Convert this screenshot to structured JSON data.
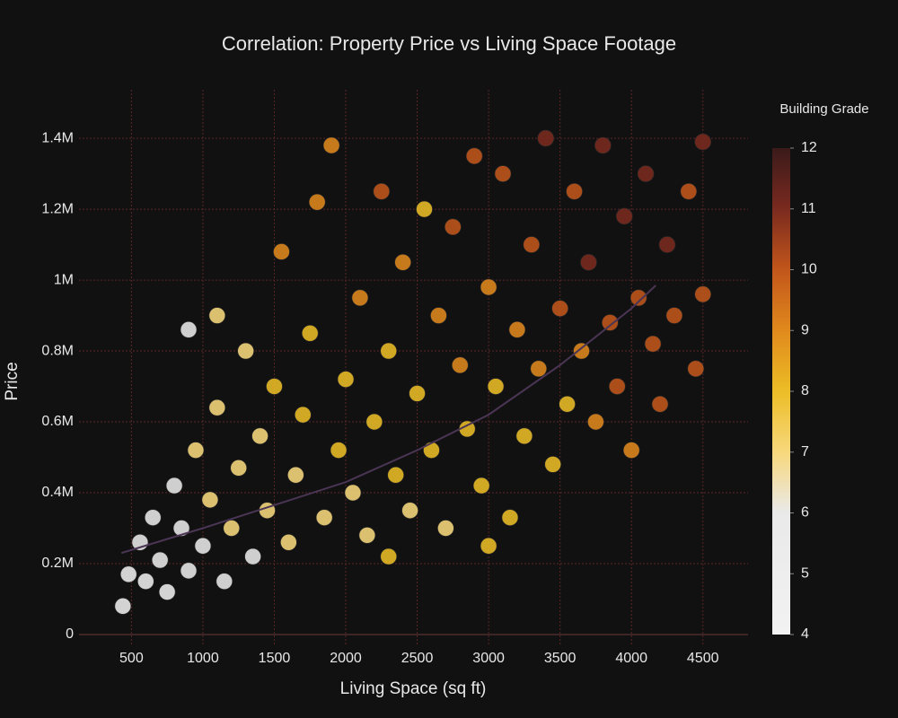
{
  "chart_data": {
    "type": "scatter",
    "title": "Correlation: Property Price vs Living Space Footage",
    "x_label": "Living Space (sq ft)",
    "y_label": "Price",
    "xlim": [
      133,
      4816
    ],
    "ylim": [
      -33000,
      1537000
    ],
    "xticks": [
      500,
      1000,
      1500,
      2000,
      2500,
      3000,
      3500,
      4000,
      4500
    ],
    "yticks": [
      0,
      {
        "value": 200000,
        "label": "0.2M"
      },
      {
        "value": 400000,
        "label": "0.4M"
      },
      {
        "value": 600000,
        "label": "0.6M"
      },
      {
        "value": 800000,
        "label": "0.8M"
      },
      {
        "value": 1000000,
        "label": "1M"
      },
      {
        "value": 1200000,
        "label": "1.2M"
      },
      {
        "value": 1400000,
        "label": "1.4M"
      }
    ],
    "grid": true,
    "series": [
      {
        "type": "scatter",
        "x": [
          440,
          480,
          560,
          600,
          650,
          700,
          750,
          800,
          850,
          900,
          950,
          1000,
          1050,
          1100,
          1150,
          1200,
          1250,
          1300,
          1350,
          1400,
          1450,
          1500,
          1550,
          1600,
          1650,
          1700,
          1750,
          1800,
          1850,
          1900,
          1950,
          2000,
          2050,
          2100,
          2150,
          2200,
          2250,
          2300,
          2350,
          2400,
          2450,
          2500,
          2550,
          2600,
          2650,
          2700,
          2750,
          2800,
          2850,
          2900,
          2950,
          3000,
          3050,
          3100,
          3150,
          3200,
          3250,
          3300,
          3350,
          3400,
          3450,
          3500,
          3550,
          3600,
          3650,
          3700,
          3750,
          3800,
          3850,
          3900,
          3950,
          4000,
          4050,
          4100,
          4150,
          4200,
          4250,
          4300,
          4400,
          4450,
          4500,
          4500,
          1100,
          900,
          2300,
          3000
        ],
        "values": [
          80000,
          170000,
          260000,
          150000,
          330000,
          210000,
          120000,
          420000,
          300000,
          180000,
          520000,
          250000,
          380000,
          640000,
          150000,
          300000,
          470000,
          800000,
          220000,
          560000,
          350000,
          700000,
          1080000,
          260000,
          450000,
          620000,
          850000,
          1220000,
          330000,
          1380000,
          520000,
          720000,
          400000,
          950000,
          280000,
          600000,
          1250000,
          800000,
          450000,
          1050000,
          350000,
          680000,
          1200000,
          520000,
          900000,
          300000,
          1150000,
          760000,
          580000,
          1350000,
          420000,
          980000,
          700000,
          1300000,
          330000,
          860000,
          560000,
          1100000,
          750000,
          1400000,
          480000,
          920000,
          650000,
          1250000,
          800000,
          1050000,
          600000,
          1380000,
          880000,
          700000,
          1180000,
          520000,
          950000,
          1300000,
          820000,
          650000,
          1100000,
          900000,
          1250000,
          750000,
          1390000,
          960000,
          900000,
          860000,
          220000,
          250000
        ],
        "grades": [
          5,
          5,
          6,
          5,
          6,
          6,
          5,
          6,
          6,
          6,
          7,
          6,
          7,
          7,
          6,
          7,
          7,
          7,
          6,
          7,
          7,
          8,
          9,
          7,
          7,
          8,
          8,
          9,
          7,
          9,
          8,
          8,
          7,
          9,
          7,
          8,
          10,
          8,
          8,
          9,
          7,
          8,
          8,
          8,
          9,
          7,
          10,
          9,
          8,
          10,
          8,
          9,
          8,
          10,
          8,
          9,
          8,
          10,
          9,
          11,
          8,
          10,
          8,
          10,
          9,
          11,
          9,
          11,
          10,
          10,
          11,
          9,
          10,
          11,
          10,
          10,
          11,
          10,
          10,
          10,
          11,
          10,
          7,
          6,
          8,
          8
        ]
      },
      {
        "type": "line",
        "color": "#4b3555",
        "x": [
          430,
          1000,
          1500,
          2000,
          2500,
          3000,
          3500,
          4000,
          4170
        ],
        "values": [
          230000,
          300000,
          365000,
          430000,
          520000,
          620000,
          760000,
          920000,
          985000
        ]
      }
    ],
    "colorbar": {
      "title": "Building Grade",
      "lim": [
        4,
        12
      ],
      "ticks": [
        4,
        5,
        6,
        7,
        8,
        9,
        10,
        11,
        12
      ],
      "colorscale": [
        [
          4,
          "#f2f2f2"
        ],
        [
          6,
          "#e9e9e9"
        ],
        [
          7,
          "#f7d87c"
        ],
        [
          8,
          "#ecbd26"
        ],
        [
          9,
          "#e0891c"
        ],
        [
          10,
          "#c2561b"
        ],
        [
          11,
          "#7a2a1f"
        ],
        [
          12,
          "#3a1a1a"
        ]
      ]
    }
  }
}
